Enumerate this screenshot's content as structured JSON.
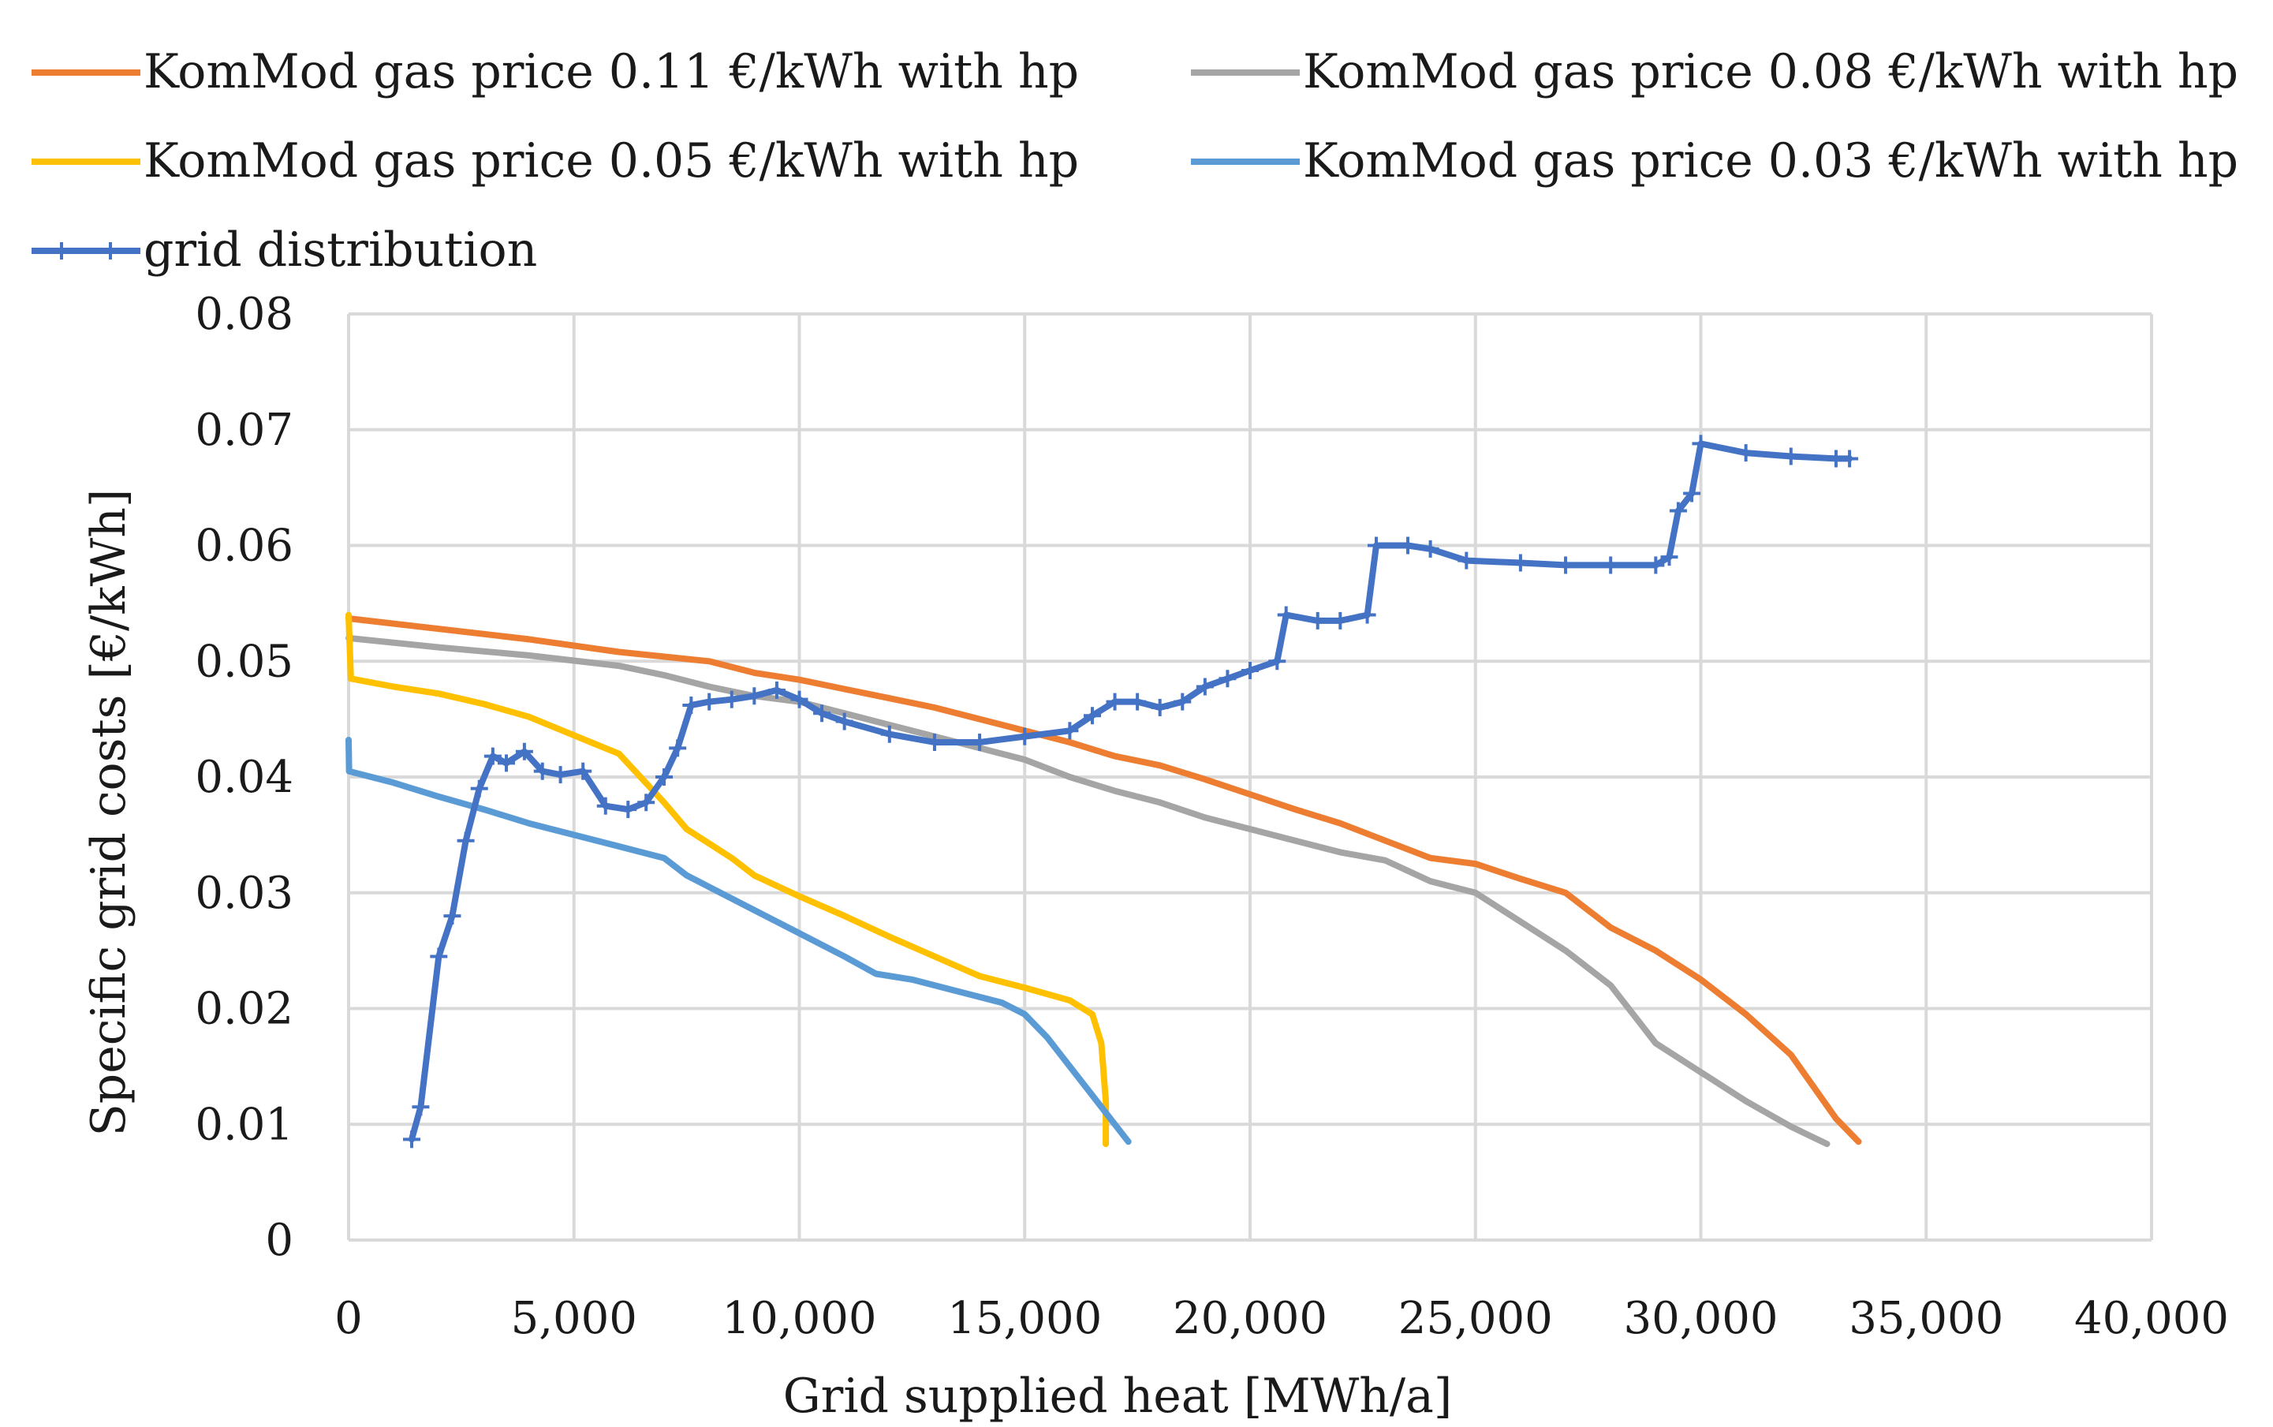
{
  "chart_data": {
    "type": "line",
    "xlabel": "Grid supplied heat [MWh/a]",
    "ylabel": "Specific grid costs [€/kWh]",
    "xlim": [
      0,
      40000
    ],
    "ylim": [
      0,
      0.08
    ],
    "x_ticks": [
      "0",
      "5,000",
      "10,000",
      "15,000",
      "20,000",
      "25,000",
      "30,000",
      "35,000",
      "40,000"
    ],
    "y_ticks": [
      "0",
      "0.01",
      "0.02",
      "0.03",
      "0.04",
      "0.05",
      "0.06",
      "0.07",
      "0.08"
    ],
    "grid": true,
    "legend_position": "top",
    "series": [
      {
        "name": "KomMod gas price 0.11 €/kWh with hp",
        "color": "#ED7D31",
        "marker": "none",
        "points": [
          [
            0,
            0.0537
          ],
          [
            2000,
            0.0528
          ],
          [
            4000,
            0.0519
          ],
          [
            6000,
            0.0508
          ],
          [
            8000,
            0.05
          ],
          [
            9000,
            0.049
          ],
          [
            10000,
            0.0484
          ],
          [
            11000,
            0.0476
          ],
          [
            12000,
            0.0468
          ],
          [
            13000,
            0.046
          ],
          [
            14000,
            0.045
          ],
          [
            15000,
            0.044
          ],
          [
            16000,
            0.043
          ],
          [
            17000,
            0.0418
          ],
          [
            18000,
            0.041
          ],
          [
            19000,
            0.0398
          ],
          [
            20000,
            0.0385
          ],
          [
            21000,
            0.0372
          ],
          [
            22000,
            0.036
          ],
          [
            23000,
            0.0345
          ],
          [
            24000,
            0.033
          ],
          [
            25000,
            0.0325
          ],
          [
            26000,
            0.0312
          ],
          [
            27000,
            0.03
          ],
          [
            28000,
            0.027
          ],
          [
            29000,
            0.025
          ],
          [
            30000,
            0.0225
          ],
          [
            31000,
            0.0195
          ],
          [
            32000,
            0.016
          ],
          [
            33000,
            0.0105
          ],
          [
            33500,
            0.0085
          ]
        ]
      },
      {
        "name": "KomMod gas price 0.08 €/kWh with hp",
        "color": "#A5A5A5",
        "marker": "none",
        "points": [
          [
            0,
            0.052
          ],
          [
            2000,
            0.0512
          ],
          [
            4000,
            0.0505
          ],
          [
            6000,
            0.0496
          ],
          [
            7000,
            0.0488
          ],
          [
            8000,
            0.0478
          ],
          [
            9000,
            0.047
          ],
          [
            10000,
            0.0465
          ],
          [
            11000,
            0.0455
          ],
          [
            12000,
            0.0445
          ],
          [
            13000,
            0.0435
          ],
          [
            14000,
            0.0425
          ],
          [
            15000,
            0.0415
          ],
          [
            16000,
            0.04
          ],
          [
            17000,
            0.0388
          ],
          [
            18000,
            0.0378
          ],
          [
            19000,
            0.0365
          ],
          [
            20000,
            0.0355
          ],
          [
            21000,
            0.0345
          ],
          [
            22000,
            0.0335
          ],
          [
            23000,
            0.0328
          ],
          [
            24000,
            0.031
          ],
          [
            25000,
            0.03
          ],
          [
            26000,
            0.0275
          ],
          [
            27000,
            0.025
          ],
          [
            28000,
            0.022
          ],
          [
            28500,
            0.0195
          ],
          [
            29000,
            0.017
          ],
          [
            30000,
            0.0145
          ],
          [
            31000,
            0.012
          ],
          [
            32000,
            0.0098
          ],
          [
            32800,
            0.0083
          ]
        ]
      },
      {
        "name": "KomMod gas price 0.05 €/kWh with hp",
        "color": "#FFC000",
        "marker": "none",
        "points": [
          [
            0,
            0.054
          ],
          [
            50,
            0.0485
          ],
          [
            1000,
            0.0478
          ],
          [
            2000,
            0.0472
          ],
          [
            3000,
            0.0463
          ],
          [
            4000,
            0.0452
          ],
          [
            5000,
            0.0436
          ],
          [
            6000,
            0.042
          ],
          [
            7000,
            0.0378
          ],
          [
            7500,
            0.0355
          ],
          [
            8500,
            0.033
          ],
          [
            9000,
            0.0315
          ],
          [
            10000,
            0.0297
          ],
          [
            11000,
            0.028
          ],
          [
            12000,
            0.0262
          ],
          [
            13000,
            0.0245
          ],
          [
            14000,
            0.0228
          ],
          [
            15000,
            0.0218
          ],
          [
            16000,
            0.0207
          ],
          [
            16500,
            0.0195
          ],
          [
            16700,
            0.017
          ],
          [
            16800,
            0.012
          ],
          [
            16800,
            0.0083
          ]
        ]
      },
      {
        "name": "KomMod gas price 0.03 €/kWh with hp",
        "color": "#5B9BD5",
        "marker": "none",
        "points": [
          [
            0,
            0.0432
          ],
          [
            10,
            0.0405
          ],
          [
            1000,
            0.0395
          ],
          [
            2000,
            0.0383
          ],
          [
            3000,
            0.0372
          ],
          [
            4000,
            0.036
          ],
          [
            5000,
            0.035
          ],
          [
            6000,
            0.034
          ],
          [
            7000,
            0.033
          ],
          [
            7500,
            0.0315
          ],
          [
            8000,
            0.0305
          ],
          [
            9000,
            0.0285
          ],
          [
            10000,
            0.0265
          ],
          [
            11000,
            0.0245
          ],
          [
            11700,
            0.023
          ],
          [
            12500,
            0.0225
          ],
          [
            13500,
            0.0215
          ],
          [
            14500,
            0.0205
          ],
          [
            15000,
            0.0195
          ],
          [
            15500,
            0.0175
          ],
          [
            16000,
            0.015
          ],
          [
            16500,
            0.0125
          ],
          [
            17000,
            0.01
          ],
          [
            17300,
            0.0085
          ]
        ]
      },
      {
        "name": "grid distribution",
        "color": "#4472C4",
        "marker": "plus",
        "points": [
          [
            1400,
            0.0087
          ],
          [
            1600,
            0.0115
          ],
          [
            2000,
            0.0245
          ],
          [
            2300,
            0.028
          ],
          [
            2600,
            0.0345
          ],
          [
            2900,
            0.039
          ],
          [
            3200,
            0.0418
          ],
          [
            3500,
            0.0412
          ],
          [
            3900,
            0.0422
          ],
          [
            4300,
            0.0405
          ],
          [
            4700,
            0.0402
          ],
          [
            5200,
            0.0405
          ],
          [
            5700,
            0.0375
          ],
          [
            6200,
            0.0372
          ],
          [
            6600,
            0.0378
          ],
          [
            7000,
            0.04
          ],
          [
            7300,
            0.0425
          ],
          [
            7600,
            0.0462
          ],
          [
            8000,
            0.0465
          ],
          [
            8500,
            0.0467
          ],
          [
            9000,
            0.047
          ],
          [
            9500,
            0.0475
          ],
          [
            10000,
            0.0467
          ],
          [
            10500,
            0.0455
          ],
          [
            11000,
            0.0448
          ],
          [
            12000,
            0.0437
          ],
          [
            13000,
            0.043
          ],
          [
            14000,
            0.043
          ],
          [
            15000,
            0.0435
          ],
          [
            16000,
            0.044
          ],
          [
            16500,
            0.0453
          ],
          [
            17000,
            0.0465
          ],
          [
            17500,
            0.0465
          ],
          [
            18000,
            0.046
          ],
          [
            18500,
            0.0465
          ],
          [
            19000,
            0.0478
          ],
          [
            19500,
            0.0485
          ],
          [
            20000,
            0.0492
          ],
          [
            20600,
            0.05
          ],
          [
            20800,
            0.054
          ],
          [
            21500,
            0.0535
          ],
          [
            22000,
            0.0535
          ],
          [
            22600,
            0.054
          ],
          [
            22800,
            0.06
          ],
          [
            23500,
            0.06
          ],
          [
            24000,
            0.0597
          ],
          [
            24800,
            0.0587
          ],
          [
            26000,
            0.0585
          ],
          [
            27000,
            0.0583
          ],
          [
            28000,
            0.0583
          ],
          [
            29000,
            0.0583
          ],
          [
            29300,
            0.059
          ],
          [
            29500,
            0.063
          ],
          [
            29800,
            0.0645
          ],
          [
            30000,
            0.0688
          ],
          [
            31000,
            0.068
          ],
          [
            32000,
            0.0677
          ],
          [
            33000,
            0.0675
          ],
          [
            33300,
            0.0675
          ]
        ]
      }
    ]
  }
}
